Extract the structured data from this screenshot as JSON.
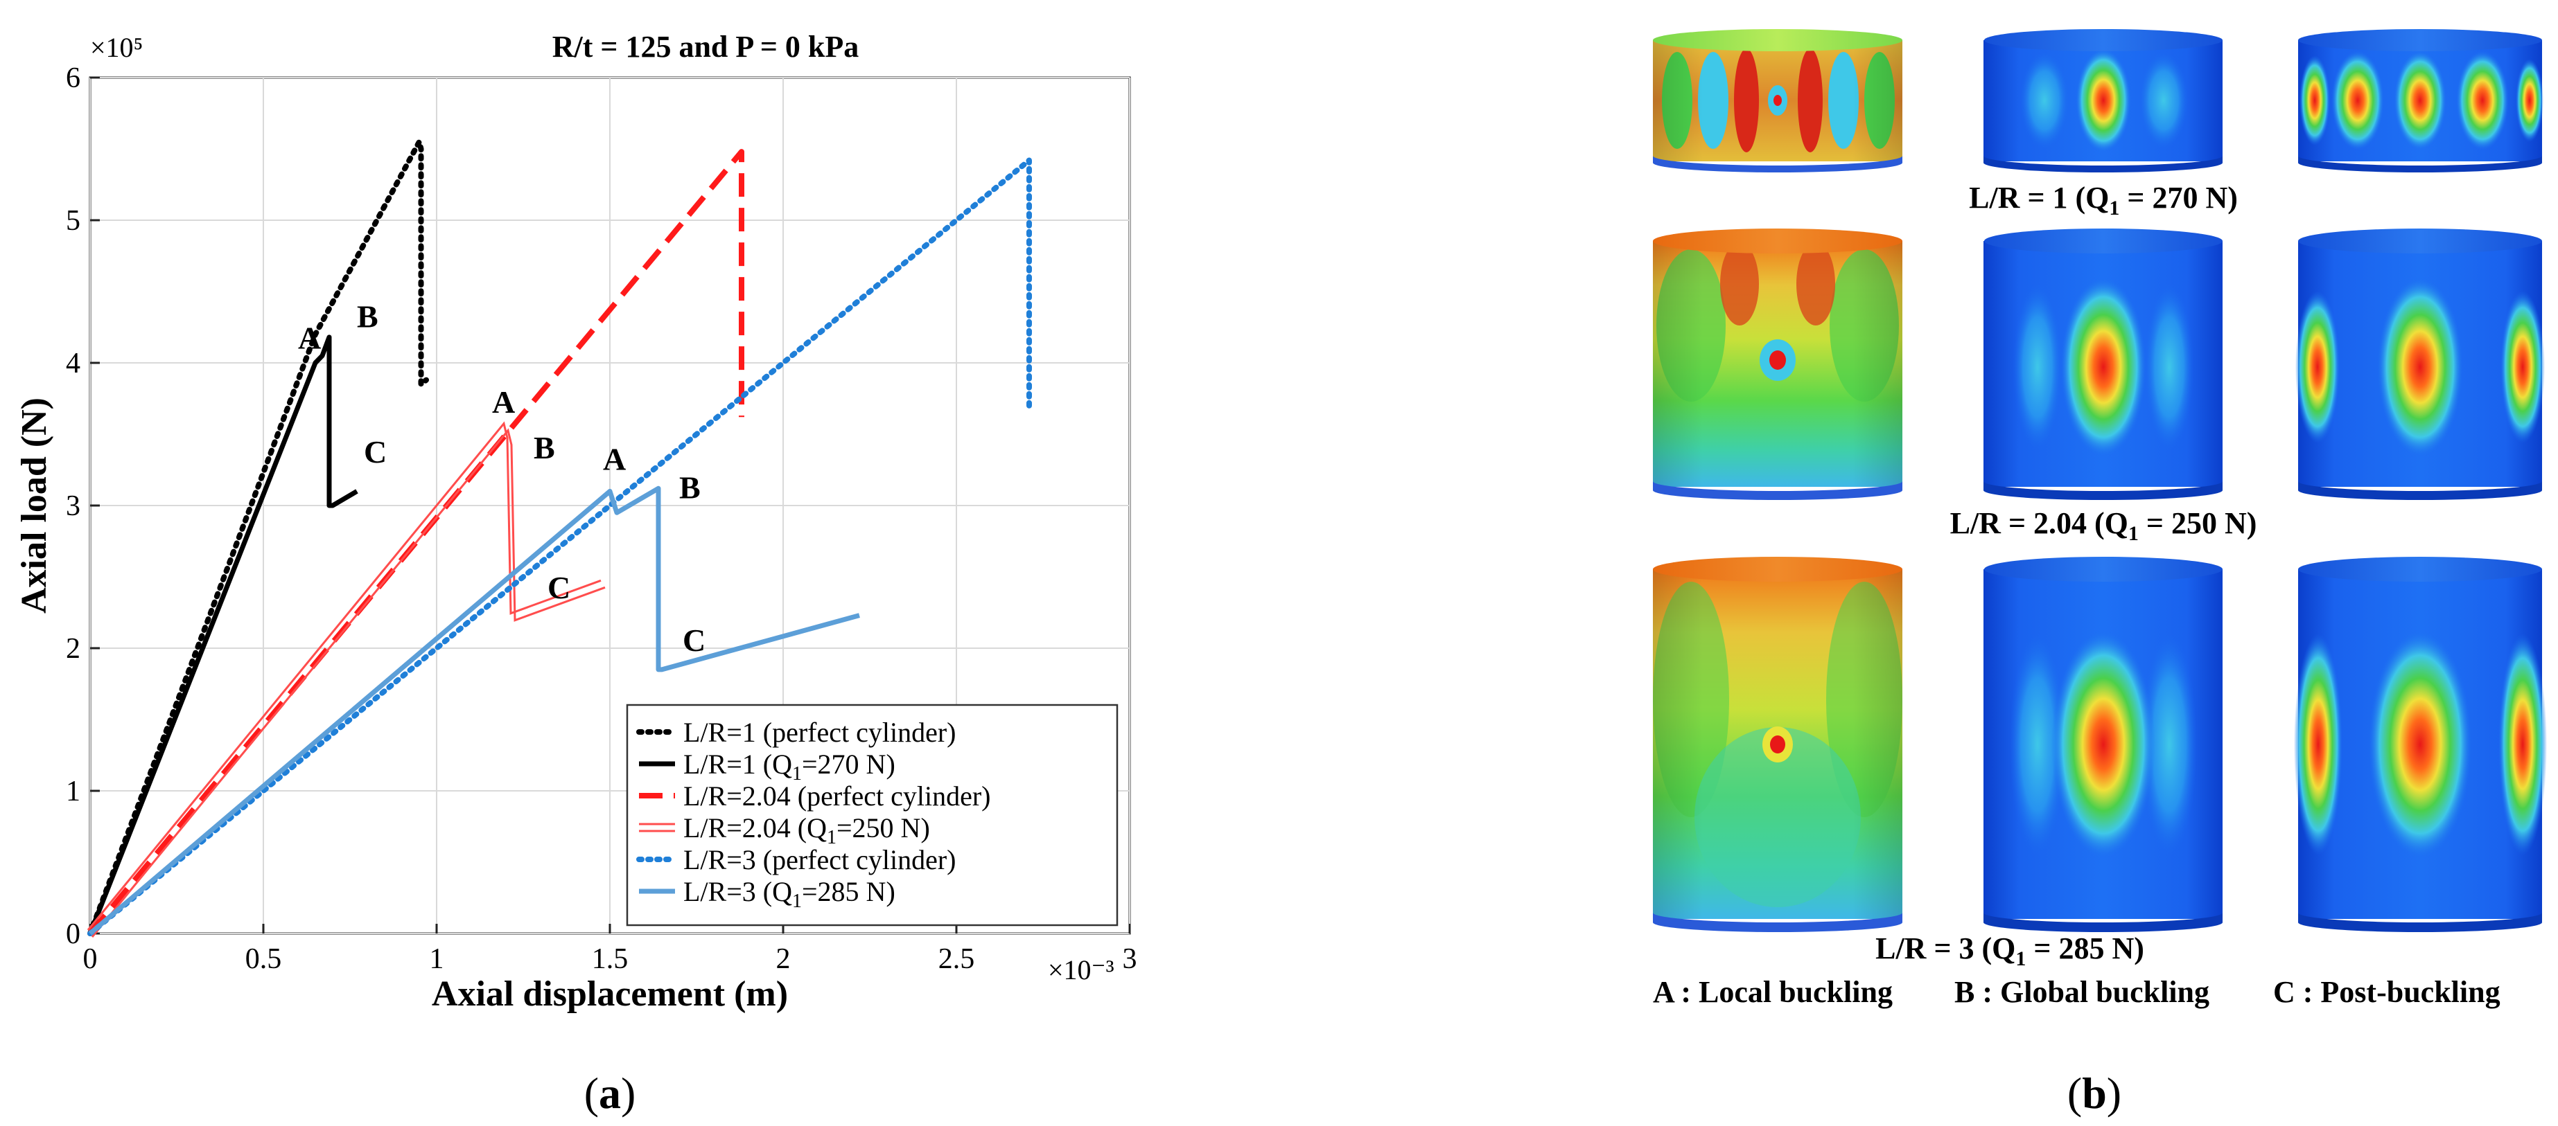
{
  "chart_data": {
    "type": "line",
    "title": "R/t = 125 and P = 0 kPa",
    "xlabel": "Axial displacement (m)",
    "ylabel": "Axial load (N)",
    "x_exponent": "×10⁻³",
    "y_exponent": "×10⁵",
    "xlim": [
      0,
      3
    ],
    "ylim": [
      0,
      6
    ],
    "grid": true,
    "legend_position": "bottom-right",
    "x_ticks": [
      0,
      0.5,
      1,
      1.5,
      2,
      2.5,
      3
    ],
    "x_tick_labels": [
      "0",
      "0.5",
      "1",
      "1.5",
      "2",
      "2.5",
      "3"
    ],
    "y_ticks": [
      0,
      1,
      2,
      3,
      4,
      5,
      6
    ],
    "y_tick_labels": [
      "0",
      "1",
      "2",
      "3",
      "4",
      "5",
      "6"
    ],
    "series": [
      {
        "name": "L/R=1 (perfect cylinder)",
        "label_main": "L/R=1 (perfect cylinder)",
        "label_sub": "",
        "label_tail": "",
        "color": "#000000",
        "style": "dotted",
        "x": [
          0,
          0.65,
          0.95,
          0.955,
          0.955,
          0.97
        ],
        "y": [
          0,
          4.2,
          5.55,
          5.5,
          3.85,
          3.88
        ]
      },
      {
        "name": "L/R=1 (Q1=270 N)",
        "label_main": "L/R=1 (Q",
        "label_sub": "1",
        "label_tail": "=270 N)",
        "color": "#000000",
        "style": "solid",
        "x": [
          0,
          0.65,
          0.67,
          0.69,
          0.69,
          0.7,
          0.77
        ],
        "y": [
          0,
          4.0,
          4.05,
          4.18,
          3.0,
          3.0,
          3.1
        ]
      },
      {
        "name": "L/R=2.04 (perfect cylinder)",
        "label_main": "L/R=2.04 (perfect cylinder)",
        "label_sub": "",
        "label_tail": "",
        "color": "#ff1a1a",
        "style": "dashed",
        "x": [
          0,
          1.88,
          1.88
        ],
        "y": [
          0,
          5.48,
          3.62
        ]
      },
      {
        "name": "L/R=2.04 (Q1=250 N)",
        "label_main": "L/R=2.04 (Q",
        "label_sub": "1",
        "label_tail": "=250 N)",
        "color": "#ff4d4d",
        "style": "double",
        "x": [
          0,
          1.2,
          1.21,
          1.22,
          1.48
        ],
        "y": [
          0,
          3.55,
          3.45,
          2.22,
          2.45
        ]
      },
      {
        "name": "L/R=3 (perfect cylinder)",
        "label_main": "L/R=3 (perfect cylinder)",
        "label_sub": "",
        "label_tail": "",
        "color": "#1f7fd8",
        "style": "dotted",
        "x": [
          0,
          2.71,
          2.71
        ],
        "y": [
          0,
          5.42,
          3.7
        ]
      },
      {
        "name": "L/R=3 (Q1=285 N)",
        "label_main": "L/R=3 (Q",
        "label_sub": "1",
        "label_tail": "=285 N)",
        "color": "#5c9fd8",
        "style": "solid",
        "x": [
          0,
          1.5,
          1.52,
          1.64,
          1.64,
          1.65,
          2.22
        ],
        "y": [
          0,
          3.1,
          2.95,
          3.12,
          1.85,
          1.85,
          2.23
        ]
      }
    ],
    "annotations": [
      {
        "text": "A",
        "x": 0.6,
        "y": 4.1
      },
      {
        "text": "B",
        "x": 0.77,
        "y": 4.25
      },
      {
        "text": "C",
        "x": 0.79,
        "y": 3.3
      },
      {
        "text": "A",
        "x": 1.16,
        "y": 3.65
      },
      {
        "text": "B",
        "x": 1.28,
        "y": 3.33
      },
      {
        "text": "C",
        "x": 1.32,
        "y": 2.35
      },
      {
        "text": "A",
        "x": 1.48,
        "y": 3.25
      },
      {
        "text": "B",
        "x": 1.7,
        "y": 3.05
      },
      {
        "text": "C",
        "x": 1.71,
        "y": 1.98
      }
    ],
    "panel_label": "a"
  },
  "panel_b": {
    "panel_label": "b",
    "rows": [
      {
        "caption": "L/R = 1 (Q",
        "caption_sub": "1",
        "caption_tail": " = 270 N)"
      },
      {
        "caption": "L/R = 2.04 (Q",
        "caption_sub": "1",
        "caption_tail": " = 250 N)"
      },
      {
        "caption": "L/R = 3 (Q",
        "caption_sub": "1",
        "caption_tail": " = 285 N)"
      }
    ],
    "legend": {
      "a": "A : Local buckling",
      "b": "B : Global buckling",
      "c": "C : Post-buckling"
    },
    "colors": {
      "dark_blue": "#0a3fd0",
      "blue": "#1a6cf0",
      "cyan": "#3fd6e8",
      "green": "#4bd04b",
      "yellow": "#e8e43a",
      "orange": "#ff8a1a",
      "red": "#e81818"
    }
  }
}
